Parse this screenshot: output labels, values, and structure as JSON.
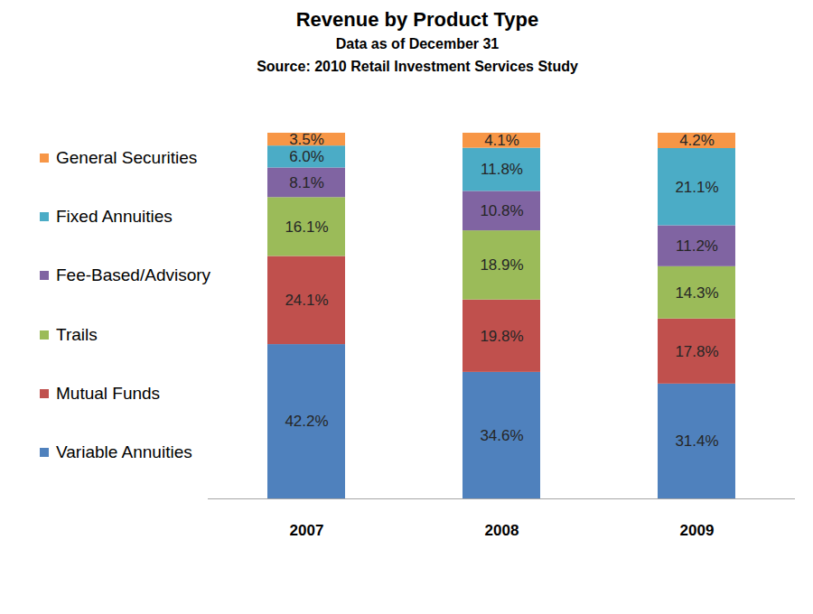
{
  "chart_data": {
    "type": "bar",
    "title": "Revenue by Product Type",
    "subtitle": [
      "Data as of December 31",
      "Source: 2010 Retail Investment Services Study"
    ],
    "categories": [
      "2007",
      "2008",
      "2009"
    ],
    "stacked": true,
    "data_labels": true,
    "tick_labels": "x",
    "legend": "left",
    "ylim": [
      0,
      100
    ],
    "series": [
      {
        "name": "Variable Annuities",
        "color": "#4f81bd",
        "values": [
          42.2,
          34.6,
          31.4
        ],
        "value_labels": [
          "42.2%",
          "34.6%",
          "31.4%"
        ]
      },
      {
        "name": "Mutual Funds",
        "color": "#c0504d",
        "values": [
          24.1,
          19.8,
          17.8
        ],
        "value_labels": [
          "24.1%",
          "19.8%",
          "17.8%"
        ]
      },
      {
        "name": "Trails",
        "color": "#9bbb59",
        "values": [
          16.1,
          18.9,
          14.3
        ],
        "value_labels": [
          "16.1%",
          "18.9%",
          "14.3%"
        ]
      },
      {
        "name": "Fee-Based/Advisory",
        "color": "#8064a2",
        "values": [
          8.1,
          10.8,
          11.2
        ],
        "value_labels": [
          "8.1%",
          "10.8%",
          "11.2%"
        ]
      },
      {
        "name": "Fixed Annuities",
        "color": "#4bacc6",
        "values": [
          6.0,
          11.8,
          21.1
        ],
        "value_labels": [
          "6.0%",
          "11.8%",
          "21.1%"
        ]
      },
      {
        "name": "General Securities",
        "color": "#f79646",
        "values": [
          3.5,
          4.1,
          4.2
        ],
        "value_labels": [
          "3.5%",
          "4.1%",
          "4.2%"
        ]
      }
    ]
  }
}
